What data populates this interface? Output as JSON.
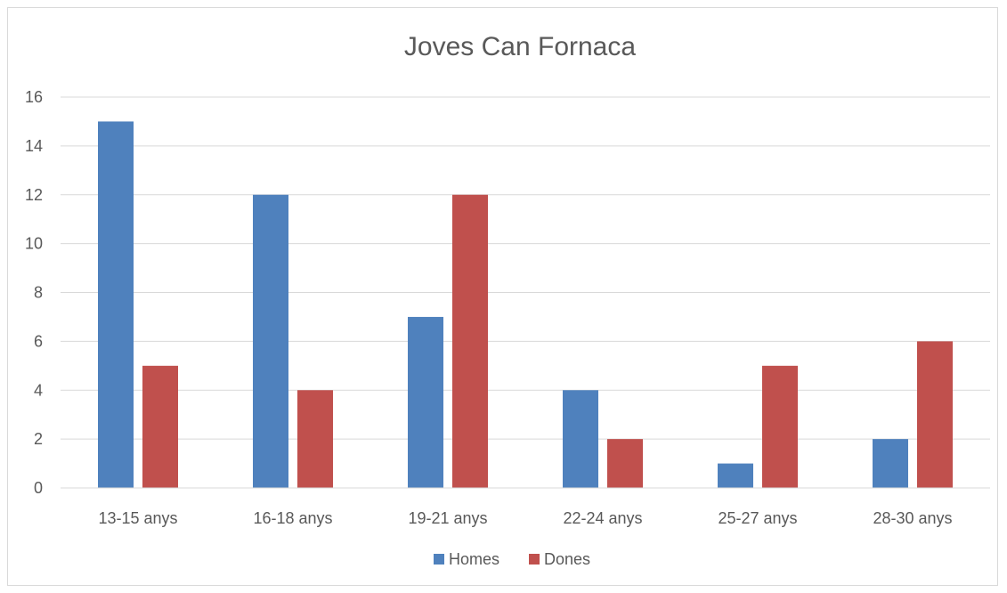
{
  "chart_data": {
    "type": "bar",
    "title": "Joves Can Fornaca",
    "xlabel": "",
    "ylabel": "",
    "categories": [
      "13-15 anys",
      "16-18 anys",
      "19-21 anys",
      "22-24 anys",
      "25-27 anys",
      "28-30 anys"
    ],
    "series": [
      {
        "name": "Homes",
        "values": [
          15,
          12,
          7,
          4,
          1,
          2
        ],
        "color": "#4f81bd"
      },
      {
        "name": "Dones",
        "values": [
          5,
          4,
          12,
          2,
          5,
          6
        ],
        "color": "#c0504d"
      }
    ],
    "ylim": [
      0,
      16
    ],
    "yticks": [
      "0",
      "2",
      "4",
      "6",
      "8",
      "10",
      "12",
      "14",
      "16"
    ],
    "grid": true,
    "legend_position": "bottom"
  }
}
